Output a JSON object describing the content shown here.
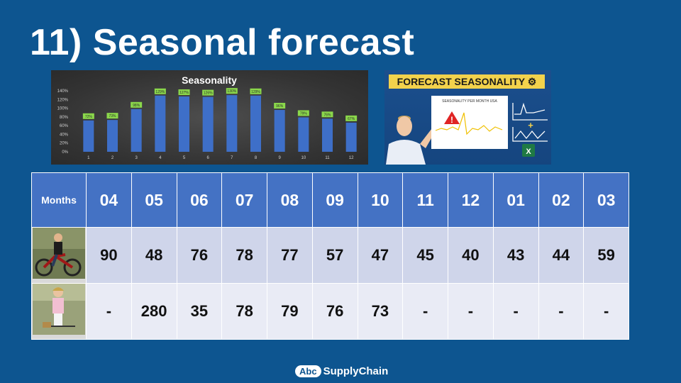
{
  "slide": {
    "title": "11) Seasonal forecast"
  },
  "chart_data": {
    "type": "bar",
    "title": "Seasonality",
    "categories": [
      "1",
      "2",
      "3",
      "4",
      "5",
      "6",
      "7",
      "8",
      "9",
      "10",
      "11",
      "12"
    ],
    "values": [
      72,
      73,
      98,
      129,
      127,
      126,
      130,
      129,
      96,
      79,
      76,
      67
    ],
    "data_labels": [
      "72%",
      "73%",
      "98%",
      "129%",
      "127%",
      "126%",
      "130%",
      "129%",
      "96%",
      "79%",
      "76%",
      "67%"
    ],
    "y_ticks": [
      "0%",
      "20%",
      "40%",
      "60%",
      "80%",
      "100%",
      "120%",
      "140%"
    ],
    "ylim": [
      0,
      140
    ],
    "grid": false,
    "colors": {
      "bar": "#3e6fc8",
      "label_bg": "#8bd84b",
      "background": "#3a3a3a"
    }
  },
  "thumbnail": {
    "banner": "FORECAST SEASONALITY",
    "inner_chart_title": "SEASONALITY PER MONTH USA"
  },
  "table": {
    "header_label": "Months",
    "months": [
      "04",
      "05",
      "06",
      "07",
      "08",
      "09",
      "10",
      "11",
      "12",
      "01",
      "02",
      "03"
    ],
    "rows": [
      {
        "image": "man-on-ebike-photo",
        "cells": [
          {
            "v": "90",
            "s": "pos"
          },
          {
            "v": "48",
            "s": "neg"
          },
          {
            "v": "76",
            "s": ""
          },
          {
            "v": "78",
            "s": ""
          },
          {
            "v": "77",
            "s": ""
          },
          {
            "v": "57",
            "s": ""
          },
          {
            "v": "47",
            "s": ""
          },
          {
            "v": "45",
            "s": ""
          },
          {
            "v": "40",
            "s": ""
          },
          {
            "v": "43",
            "s": ""
          },
          {
            "v": "44",
            "s": ""
          },
          {
            "v": "59",
            "s": ""
          }
        ]
      },
      {
        "image": "woman-with-bike-photo",
        "cells": [
          {
            "v": "-",
            "s": ""
          },
          {
            "v": "280",
            "s": "pos"
          },
          {
            "v": "35",
            "s": "neg"
          },
          {
            "v": "78",
            "s": ""
          },
          {
            "v": "79",
            "s": ""
          },
          {
            "v": "76",
            "s": ""
          },
          {
            "v": "73",
            "s": ""
          },
          {
            "v": "-",
            "s": ""
          },
          {
            "v": "-",
            "s": ""
          },
          {
            "v": "-",
            "s": ""
          },
          {
            "v": "-",
            "s": ""
          },
          {
            "v": "-",
            "s": ""
          }
        ]
      }
    ]
  },
  "footer": {
    "logo_badge": "Abc",
    "logo_text": "SupplyChain"
  },
  "colors": {
    "background": "#0d5590",
    "header": "#4472c4",
    "positive": "#16a34a",
    "negative": "#ef1b1b"
  }
}
